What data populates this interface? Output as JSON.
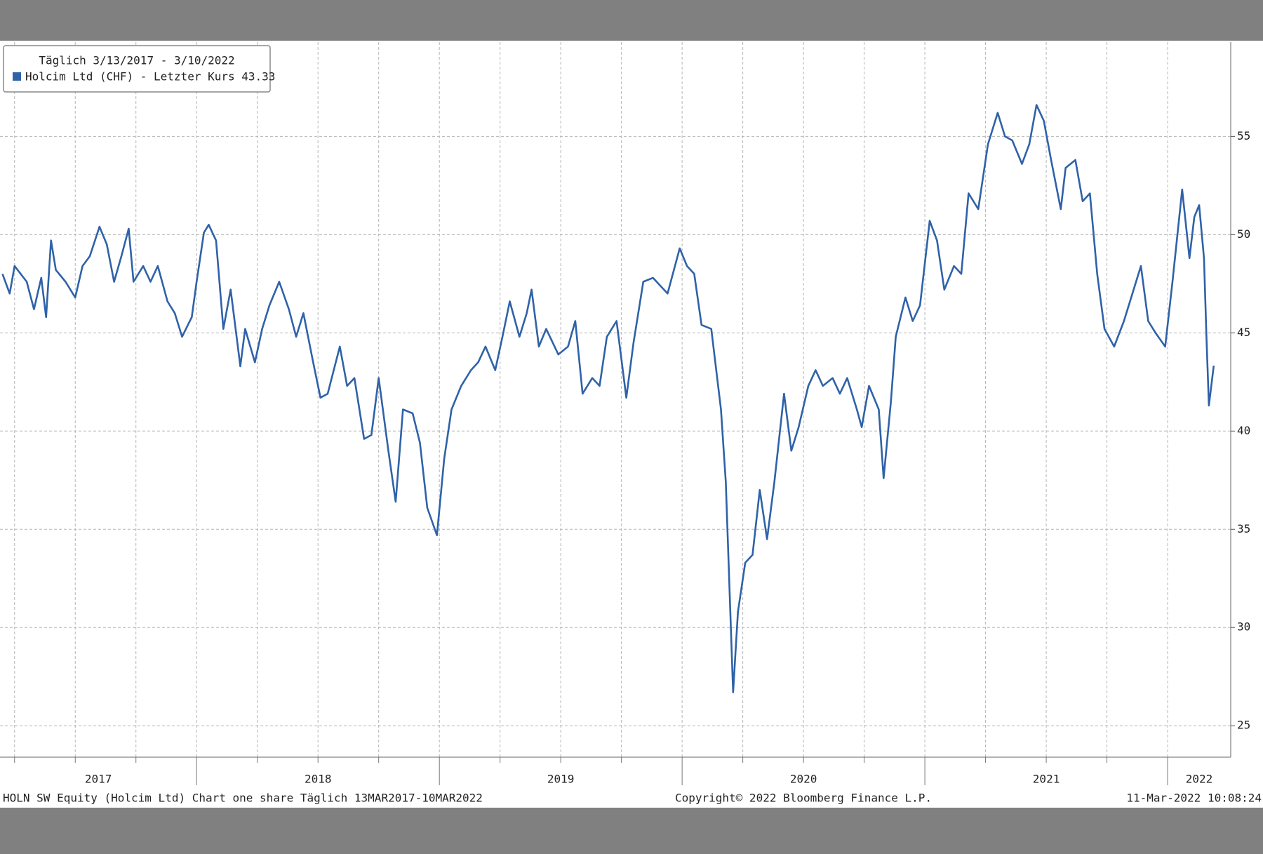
{
  "chart_data": {
    "type": "line",
    "subtitle": "Täglich 3/13/2017 - 3/10/2022",
    "series": [
      {
        "name": "Holcim Ltd (CHF) - Letzter Kurs 43.33",
        "color": "#2f62a8",
        "x": [
          2017.2,
          2017.23,
          2017.25,
          2017.3,
          2017.33,
          2017.36,
          2017.38,
          2017.4,
          2017.42,
          2017.46,
          2017.5,
          2017.53,
          2017.56,
          2017.6,
          2017.63,
          2017.66,
          2017.69,
          2017.72,
          2017.74,
          2017.78,
          2017.81,
          2017.84,
          2017.88,
          2017.91,
          2017.94,
          2017.98,
          2018.0,
          2018.03,
          2018.05,
          2018.08,
          2018.11,
          2018.14,
          2018.18,
          2018.2,
          2018.24,
          2018.27,
          2018.3,
          2018.34,
          2018.38,
          2018.41,
          2018.44,
          2018.48,
          2018.51,
          2018.54,
          2018.59,
          2018.62,
          2018.65,
          2018.69,
          2018.72,
          2018.75,
          2018.79,
          2018.82,
          2018.85,
          2018.89,
          2018.92,
          2018.95,
          2018.99,
          2019.02,
          2019.05,
          2019.09,
          2019.13,
          2019.16,
          2019.19,
          2019.23,
          2019.26,
          2019.29,
          2019.33,
          2019.36,
          2019.38,
          2019.41,
          2019.44,
          2019.49,
          2019.53,
          2019.56,
          2019.59,
          2019.63,
          2019.66,
          2019.69,
          2019.73,
          2019.77,
          2019.8,
          2019.84,
          2019.88,
          2019.91,
          2019.94,
          2019.99,
          2020.02,
          2020.05,
          2020.08,
          2020.12,
          2020.16,
          2020.18,
          2020.21,
          2020.23,
          2020.26,
          2020.29,
          2020.32,
          2020.35,
          2020.38,
          2020.42,
          2020.45,
          2020.48,
          2020.52,
          2020.55,
          2020.58,
          2020.62,
          2020.65,
          2020.68,
          2020.72,
          2020.74,
          2020.77,
          2020.81,
          2020.83,
          2020.86,
          2020.88,
          2020.92,
          2020.95,
          2020.98,
          2021.02,
          2021.05,
          2021.08,
          2021.12,
          2021.15,
          2021.18,
          2021.22,
          2021.26,
          2021.3,
          2021.33,
          2021.36,
          2021.4,
          2021.43,
          2021.46,
          2021.49,
          2021.52,
          2021.56,
          2021.58,
          2021.62,
          2021.65,
          2021.68,
          2021.71,
          2021.74,
          2021.78,
          2021.82,
          2021.85,
          2021.89,
          2021.92,
          2021.95,
          2021.99,
          2022.02,
          2022.06,
          2022.09,
          2022.11,
          2022.13,
          2022.15,
          2022.16,
          2022.17,
          2022.19
        ],
        "values": [
          48.0,
          47.0,
          48.4,
          47.6,
          46.2,
          47.8,
          45.8,
          49.7,
          48.2,
          47.6,
          46.8,
          48.4,
          48.9,
          50.4,
          49.5,
          47.6,
          48.9,
          50.3,
          47.6,
          48.4,
          47.6,
          48.4,
          46.6,
          46.0,
          44.8,
          45.8,
          47.6,
          50.1,
          50.5,
          49.7,
          45.2,
          47.2,
          43.3,
          45.2,
          43.5,
          45.2,
          46.4,
          47.6,
          46.2,
          44.8,
          46.0,
          43.5,
          41.7,
          41.9,
          44.3,
          42.3,
          42.7,
          39.6,
          39.8,
          42.7,
          39.0,
          36.4,
          41.1,
          40.9,
          39.4,
          36.1,
          34.7,
          38.6,
          41.1,
          42.3,
          43.1,
          43.5,
          44.3,
          43.1,
          44.8,
          46.6,
          44.8,
          46.0,
          47.2,
          44.3,
          45.2,
          43.9,
          44.3,
          45.6,
          41.9,
          42.7,
          42.3,
          44.8,
          45.6,
          41.7,
          44.5,
          47.6,
          47.8,
          47.4,
          47.0,
          49.3,
          48.4,
          48.0,
          45.4,
          45.2,
          41.1,
          37.4,
          26.7,
          30.8,
          33.3,
          33.7,
          37.0,
          34.5,
          37.4,
          41.9,
          39.0,
          40.2,
          42.3,
          43.1,
          42.3,
          42.7,
          41.9,
          42.7,
          41.1,
          40.2,
          42.3,
          41.1,
          37.6,
          41.5,
          44.8,
          46.8,
          45.6,
          46.4,
          50.7,
          49.7,
          47.2,
          48.4,
          48.0,
          52.1,
          51.3,
          54.6,
          56.2,
          55.0,
          54.8,
          53.6,
          54.6,
          56.6,
          55.8,
          53.8,
          51.3,
          53.4,
          53.8,
          51.7,
          52.1,
          48.0,
          45.2,
          44.3,
          45.6,
          46.8,
          48.4,
          45.6,
          45.0,
          44.3,
          47.6,
          52.3,
          48.8,
          50.9,
          51.5,
          48.8,
          44.8,
          41.3,
          43.33
        ]
      }
    ],
    "xlim": [
      2017.19,
      2022.26
    ],
    "xticks": [
      2017.25,
      2017.5,
      2017.75,
      2018,
      2018.25,
      2018.5,
      2018.75,
      2019,
      2019.25,
      2019.5,
      2019.75,
      2020,
      2020.25,
      2020.5,
      2020.75,
      2021,
      2021.25,
      2021.5,
      2021.75,
      2022
    ],
    "x_labels": [
      "2017",
      "2018",
      "2019",
      "2020",
      "2021",
      "2022"
    ],
    "ylim": [
      23.4,
      59.8
    ],
    "yticks": [
      25,
      30,
      35,
      40,
      45,
      50,
      55
    ],
    "grid": true,
    "legend": "top-left",
    "footer_left": "HOLN SW Equity (Holcim Ltd) Chart one share  Täglich 13MAR2017-10MAR2022",
    "footer_center": "Copyright© 2022 Bloomberg Finance L.P.",
    "footer_right": "11-Mar-2022 10:08:24"
  }
}
